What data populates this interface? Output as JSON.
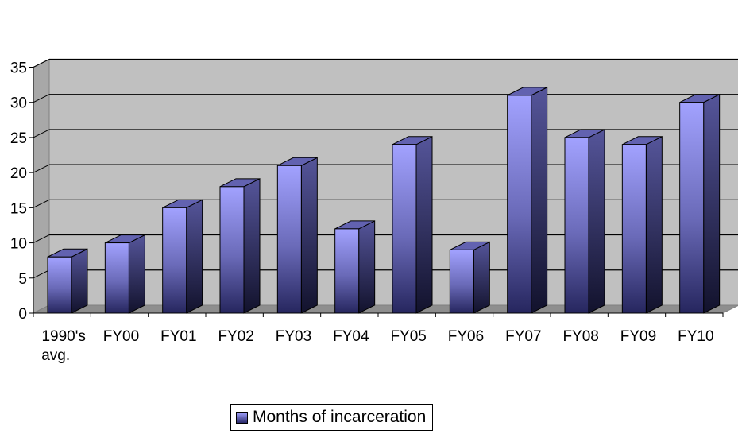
{
  "chart_data": {
    "type": "bar",
    "categories": [
      "1990's avg.",
      "FY00",
      "FY01",
      "FY02",
      "FY03",
      "FY04",
      "FY05",
      "FY06",
      "FY07",
      "FY08",
      "FY09",
      "FY10"
    ],
    "category_lines": [
      [
        "1990's",
        "avg."
      ],
      [
        "FY00"
      ],
      [
        "FY01"
      ],
      [
        "FY02"
      ],
      [
        "FY03"
      ],
      [
        "FY04"
      ],
      [
        "FY05"
      ],
      [
        "FY06"
      ],
      [
        "FY07"
      ],
      [
        "FY08"
      ],
      [
        "FY09"
      ],
      [
        "FY10"
      ]
    ],
    "series": [
      {
        "name": "Months of incarceration",
        "values": [
          8,
          10,
          15,
          18,
          21,
          12,
          24,
          9,
          31,
          25,
          24,
          30
        ]
      }
    ],
    "yticks": [
      0,
      5,
      10,
      15,
      20,
      25,
      30,
      35
    ],
    "ylim": [
      0,
      35
    ],
    "grid": true,
    "legend_position": "bottom",
    "colors": {
      "bar_front_top": "#a2a2ff",
      "bar_front_bottom": "#26265e",
      "bar_side": "#2f2f63",
      "bar_top": "#6262b0",
      "plot_back": "#c0c0c0",
      "plot_floor": "#8e8e8e"
    }
  },
  "legend": {
    "label": "Months of incarceration",
    "swatch_icon": "square-swatch-icon"
  }
}
